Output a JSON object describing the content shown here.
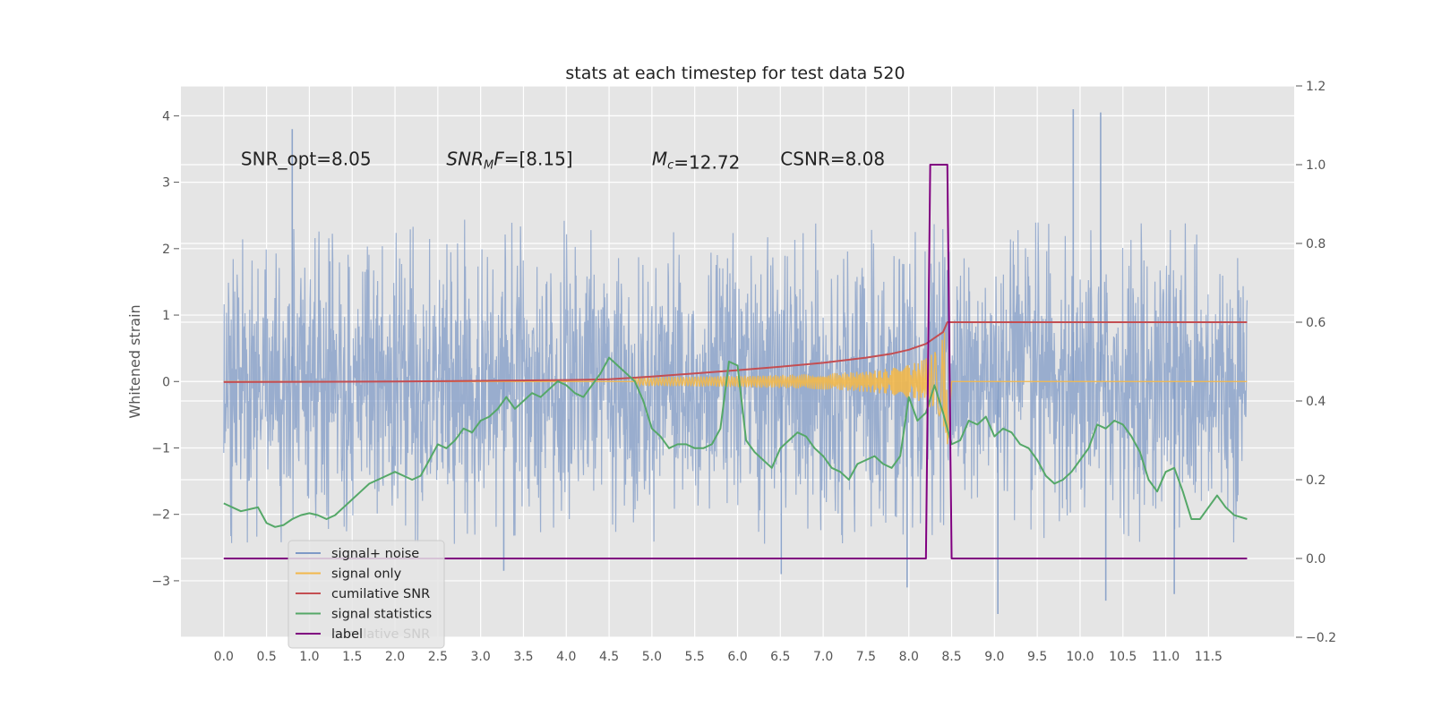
{
  "chart_data": {
    "type": "line",
    "title": "stats at each timestep for test data 520",
    "ylabel": "Whitened strain",
    "xlabel": "",
    "x_range": [
      -0.5,
      12.5
    ],
    "xlim": [
      0.0,
      11.95
    ],
    "ylim_left": [
      -3.85,
      4.45
    ],
    "ylim_right": [
      -0.2,
      1.2
    ],
    "x_ticks": [
      "0.0",
      "0.5",
      "1.0",
      "1.5",
      "2.0",
      "2.5",
      "3.0",
      "3.5",
      "4.0",
      "4.5",
      "5.0",
      "5.5",
      "6.0",
      "6.5",
      "7.0",
      "7.5",
      "8.0",
      "8.5",
      "9.0",
      "9.5",
      "10.0",
      "10.5",
      "11.0",
      "11.5"
    ],
    "x_tick_values": [
      0.0,
      0.5,
      1.0,
      1.5,
      2.0,
      2.5,
      3.0,
      3.5,
      4.0,
      4.5,
      5.0,
      5.5,
      6.0,
      6.5,
      7.0,
      7.5,
      8.0,
      8.5,
      9.0,
      9.5,
      10.0,
      10.5,
      11.0,
      11.5
    ],
    "y_ticks_left": [
      "−3",
      "−2",
      "−1",
      "0",
      "1",
      "2",
      "3",
      "4"
    ],
    "y_tick_values_left": [
      -3,
      -2,
      -1,
      0,
      1,
      2,
      3,
      4
    ],
    "y_ticks_right": [
      "−0.2",
      "0.0",
      "0.2",
      "0.4",
      "0.6",
      "0.8",
      "1.0",
      "1.2"
    ],
    "y_tick_values_right": [
      -0.2,
      0.0,
      0.2,
      0.4,
      0.6,
      0.8,
      1.0,
      1.2
    ],
    "grid": true,
    "legend_position": "lower-left",
    "annotations": [
      {
        "pre": "SNR_opt=8.05",
        "x": 0.2
      },
      {
        "pre": "",
        "italic": "SNR",
        "sub": "M",
        "italic2": "F",
        "post": "=[8.15]",
        "x": 2.6
      },
      {
        "pre": "",
        "italic": "M",
        "sub": "c",
        "italic2": "",
        "post": "=12.72",
        "x": 5.0
      },
      {
        "pre": "CSNR=8.08",
        "x": 6.5
      }
    ],
    "annotation_y": 3.35,
    "series": [
      {
        "name": "signal+ noise",
        "axis": "left",
        "color": "#7f9ac6",
        "description": "whitened strain noise, amplitude roughly ±2.4 with peaks near 4.1",
        "envelope_low": -2.4,
        "envelope_high": 2.4,
        "peaks": [
          [
            9.92,
            4.1
          ],
          [
            10.24,
            4.05
          ],
          [
            0.8,
            3.8
          ],
          [
            10.3,
            -3.3
          ],
          [
            9.04,
            -3.5
          ],
          [
            11.1,
            -3.2
          ],
          [
            7.98,
            -3.1
          ],
          [
            3.27,
            -2.85
          ],
          [
            6.51,
            -2.9
          ]
        ]
      },
      {
        "name": "signal only",
        "axis": "left",
        "color": "#f2b84b",
        "description": "chirp signal growing in amplitude until merger near 8.45",
        "merger_time": 8.45,
        "start_time": 4.8,
        "max_amplitude": 0.95
      },
      {
        "name": "cumilative SNR",
        "axis": "right",
        "color": "#c44e52",
        "x": [
          0.0,
          1.0,
          2.0,
          3.0,
          4.0,
          4.5,
          5.0,
          5.5,
          6.0,
          6.5,
          7.0,
          7.5,
          7.8,
          8.0,
          8.2,
          8.3,
          8.4,
          8.45,
          8.5,
          9.0,
          10.0,
          11.0,
          11.95
        ],
        "y": [
          0.448,
          0.4485,
          0.4495,
          0.451,
          0.453,
          0.455,
          0.462,
          0.47,
          0.478,
          0.487,
          0.497,
          0.51,
          0.52,
          0.53,
          0.545,
          0.56,
          0.575,
          0.6,
          0.6,
          0.6,
          0.6,
          0.6,
          0.6
        ]
      },
      {
        "name": "signal statistics",
        "axis": "right",
        "color": "#55a868",
        "x": [
          0.0,
          0.1,
          0.2,
          0.3,
          0.4,
          0.5,
          0.6,
          0.7,
          0.8,
          0.9,
          1.0,
          1.1,
          1.2,
          1.3,
          1.4,
          1.5,
          1.6,
          1.7,
          1.8,
          1.9,
          2.0,
          2.1,
          2.2,
          2.3,
          2.4,
          2.5,
          2.6,
          2.7,
          2.8,
          2.9,
          3.0,
          3.1,
          3.2,
          3.3,
          3.4,
          3.5,
          3.6,
          3.7,
          3.8,
          3.9,
          4.0,
          4.1,
          4.2,
          4.3,
          4.4,
          4.5,
          4.6,
          4.7,
          4.8,
          4.9,
          5.0,
          5.1,
          5.2,
          5.3,
          5.4,
          5.5,
          5.6,
          5.7,
          5.8,
          5.9,
          6.0,
          6.1,
          6.2,
          6.3,
          6.4,
          6.5,
          6.6,
          6.7,
          6.8,
          6.9,
          7.0,
          7.1,
          7.2,
          7.3,
          7.4,
          7.5,
          7.6,
          7.7,
          7.8,
          7.9,
          8.0,
          8.1,
          8.2,
          8.3,
          8.4,
          8.5,
          8.6,
          8.7,
          8.8,
          8.9,
          9.0,
          9.1,
          9.2,
          9.3,
          9.4,
          9.5,
          9.6,
          9.7,
          9.8,
          9.9,
          10.0,
          10.1,
          10.2,
          10.3,
          10.4,
          10.5,
          10.6,
          10.7,
          10.8,
          10.9,
          11.0,
          11.1,
          11.2,
          11.3,
          11.4,
          11.5,
          11.6,
          11.7,
          11.8,
          11.95
        ],
        "y": [
          0.14,
          0.13,
          0.12,
          0.125,
          0.13,
          0.09,
          0.08,
          0.085,
          0.1,
          0.11,
          0.115,
          0.11,
          0.1,
          0.11,
          0.13,
          0.15,
          0.17,
          0.19,
          0.2,
          0.21,
          0.22,
          0.21,
          0.2,
          0.21,
          0.25,
          0.29,
          0.28,
          0.3,
          0.33,
          0.32,
          0.35,
          0.36,
          0.38,
          0.41,
          0.38,
          0.4,
          0.42,
          0.41,
          0.43,
          0.45,
          0.44,
          0.42,
          0.41,
          0.44,
          0.47,
          0.51,
          0.49,
          0.47,
          0.45,
          0.4,
          0.33,
          0.31,
          0.28,
          0.29,
          0.29,
          0.28,
          0.28,
          0.29,
          0.33,
          0.5,
          0.49,
          0.3,
          0.27,
          0.25,
          0.23,
          0.28,
          0.3,
          0.32,
          0.31,
          0.28,
          0.26,
          0.23,
          0.22,
          0.2,
          0.24,
          0.25,
          0.26,
          0.24,
          0.23,
          0.26,
          0.41,
          0.35,
          0.37,
          0.44,
          0.37,
          0.29,
          0.3,
          0.35,
          0.34,
          0.36,
          0.31,
          0.33,
          0.32,
          0.29,
          0.28,
          0.25,
          0.21,
          0.19,
          0.2,
          0.22,
          0.25,
          0.28,
          0.34,
          0.33,
          0.35,
          0.34,
          0.31,
          0.27,
          0.2,
          0.17,
          0.22,
          0.23,
          0.17,
          0.1,
          0.1,
          0.13,
          0.16,
          0.13,
          0.11,
          0.1
        ]
      },
      {
        "name": "label",
        "axis": "right",
        "color": "#800080",
        "x": [
          0.0,
          8.2,
          8.25,
          8.45,
          8.5,
          11.95
        ],
        "y": [
          0.0,
          0.0,
          1.0,
          1.0,
          0.0,
          0.0
        ]
      }
    ],
    "legend_ghost_text": "cumilative SNR"
  }
}
